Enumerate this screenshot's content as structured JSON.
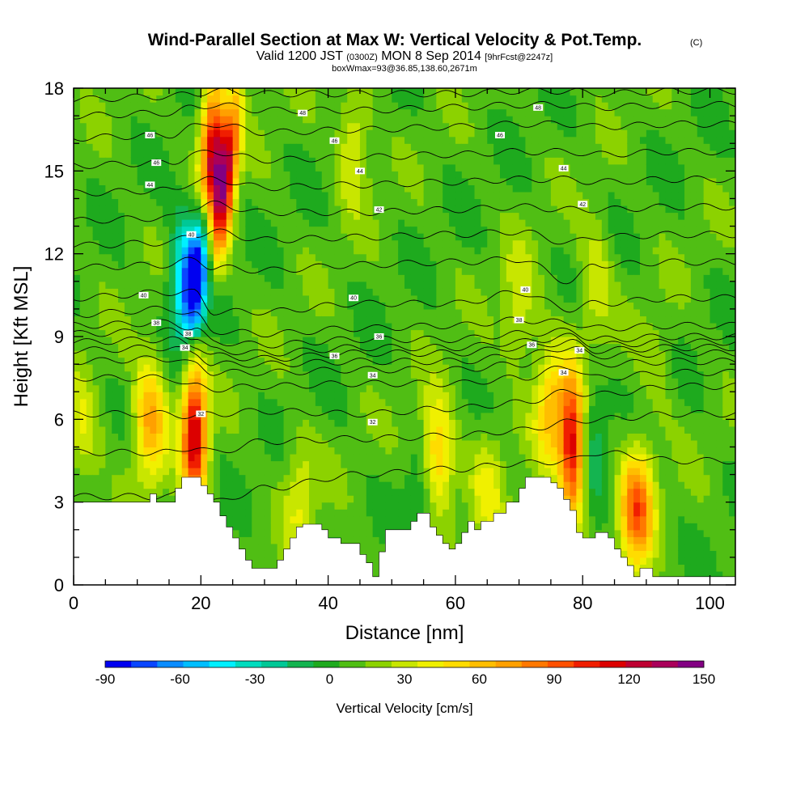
{
  "chart_data": {
    "type": "heatmap",
    "title": "Wind-Parallel Section at Max W: Vertical Velocity & Pot.Temp.",
    "title_tag": "(C)",
    "subtitle_parts": [
      "Valid 1200 JST",
      "(0300Z)",
      "MON 8 Sep 2014",
      "[9hrFcst@2247z]"
    ],
    "subtitle2": "boxWmax=93@36.85,138.60,2671m",
    "xlabel": "Distance [nm]",
    "ylabel": "Height [Kft MSL]",
    "xlim": [
      0,
      104
    ],
    "ylim": [
      0,
      18
    ],
    "xticks": [
      0,
      20,
      40,
      60,
      80,
      100
    ],
    "yticks": [
      0,
      3,
      6,
      9,
      12,
      15,
      18
    ],
    "grid": false,
    "colorbar": {
      "label": "Vertical Velocity [cm/s]",
      "ticks": [
        -90,
        -60,
        -30,
        0,
        30,
        60,
        90,
        120,
        150
      ],
      "range": [
        -90,
        150
      ],
      "colors": [
        "#0000f0",
        "#0a46ff",
        "#0a8cff",
        "#00beff",
        "#00f0ff",
        "#00dcbe",
        "#00c896",
        "#14b450",
        "#1eaa1e",
        "#50be14",
        "#8cd200",
        "#c8e600",
        "#f0f000",
        "#ffdc00",
        "#ffbe00",
        "#ffa000",
        "#ff7800",
        "#ff5000",
        "#f01e00",
        "#dc0000",
        "#be0032",
        "#aa005a",
        "#820082"
      ]
    },
    "wind_field": {
      "baseline_cm_s": 8,
      "features": [
        {
          "x_nm": 1.5,
          "z_kft": 5.5,
          "w_cm_s": 35
        },
        {
          "x_nm": 12,
          "z_kft": 6,
          "w_cm_s": 70
        },
        {
          "x_nm": 19,
          "z_kft": 5.5,
          "w_cm_s": 120
        },
        {
          "x_nm": 22,
          "z_kft": 15.5,
          "w_cm_s": 130
        },
        {
          "x_nm": 18,
          "z_kft": 11,
          "w_cm_s": -70
        },
        {
          "x_nm": 35.5,
          "z_kft": 3.2,
          "w_cm_s": 35
        },
        {
          "x_nm": 44,
          "z_kft": 16,
          "w_cm_s": 40
        },
        {
          "x_nm": 57,
          "z_kft": 4.5,
          "w_cm_s": 70
        },
        {
          "x_nm": 55,
          "z_kft": 3,
          "w_cm_s": -20
        },
        {
          "x_nm": 65,
          "z_kft": 3.5,
          "w_cm_s": 35
        },
        {
          "x_nm": 70,
          "z_kft": 10,
          "w_cm_s": 35
        },
        {
          "x_nm": 78.5,
          "z_kft": 5,
          "w_cm_s": 120
        },
        {
          "x_nm": 75,
          "z_kft": 6.5,
          "w_cm_s": 60
        },
        {
          "x_nm": 82,
          "z_kft": 11,
          "w_cm_s": 35
        },
        {
          "x_nm": 81,
          "z_kft": 5.5,
          "w_cm_s": -20
        },
        {
          "x_nm": 88.5,
          "z_kft": 2.8,
          "w_cm_s": 90
        },
        {
          "x_nm": 92,
          "z_kft": 8,
          "w_cm_s": 20
        }
      ]
    },
    "terrain_kft": [
      [
        0,
        3.0
      ],
      [
        12,
        3.0
      ],
      [
        12,
        3.3
      ],
      [
        13,
        3.3
      ],
      [
        13,
        3.0
      ],
      [
        16,
        3.0
      ],
      [
        16,
        3.5
      ],
      [
        17,
        3.5
      ],
      [
        17,
        3.9
      ],
      [
        20,
        3.9
      ],
      [
        20,
        3.6
      ],
      [
        21,
        3.6
      ],
      [
        21,
        3.3
      ],
      [
        22,
        3.3
      ],
      [
        22,
        3.0
      ],
      [
        23,
        3.0
      ],
      [
        23,
        2.5
      ],
      [
        24,
        2.5
      ],
      [
        24,
        2.1
      ],
      [
        25,
        2.1
      ],
      [
        25,
        1.7
      ],
      [
        26,
        1.7
      ],
      [
        26,
        1.3
      ],
      [
        27,
        1.3
      ],
      [
        27,
        0.9
      ],
      [
        28,
        0.9
      ],
      [
        28,
        0.6
      ],
      [
        32,
        0.6
      ],
      [
        32,
        0.9
      ],
      [
        33,
        0.9
      ],
      [
        33,
        1.3
      ],
      [
        34,
        1.3
      ],
      [
        34,
        1.7
      ],
      [
        35,
        1.7
      ],
      [
        35,
        2.1
      ],
      [
        36,
        2.1
      ],
      [
        36,
        2.2
      ],
      [
        39,
        2.2
      ],
      [
        39,
        2.0
      ],
      [
        40,
        2.0
      ],
      [
        40,
        1.7
      ],
      [
        42,
        1.7
      ],
      [
        42,
        1.5
      ],
      [
        45,
        1.5
      ],
      [
        45,
        1.1
      ],
      [
        46,
        1.1
      ],
      [
        46,
        0.8
      ],
      [
        47,
        0.8
      ],
      [
        47,
        0.3
      ],
      [
        48,
        0.3
      ],
      [
        48,
        1.2
      ],
      [
        49,
        1.2
      ],
      [
        49,
        2.0
      ],
      [
        53,
        2.0
      ],
      [
        53,
        2.3
      ],
      [
        54,
        2.3
      ],
      [
        54,
        2.6
      ],
      [
        56,
        2.6
      ],
      [
        56,
        2.1
      ],
      [
        57,
        2.1
      ],
      [
        57,
        1.8
      ],
      [
        58,
        1.8
      ],
      [
        58,
        1.5
      ],
      [
        59,
        1.5
      ],
      [
        59,
        1.3
      ],
      [
        60,
        1.3
      ],
      [
        60,
        1.5
      ],
      [
        61,
        1.5
      ],
      [
        61,
        1.9
      ],
      [
        62,
        1.9
      ],
      [
        62,
        2.3
      ],
      [
        63,
        2.3
      ],
      [
        63,
        2.0
      ],
      [
        64,
        2.0
      ],
      [
        64,
        2.3
      ],
      [
        66,
        2.3
      ],
      [
        66,
        2.6
      ],
      [
        68,
        2.6
      ],
      [
        68,
        3.0
      ],
      [
        70,
        3.0
      ],
      [
        70,
        3.5
      ],
      [
        71,
        3.5
      ],
      [
        71,
        3.9
      ],
      [
        75,
        3.9
      ],
      [
        75,
        3.7
      ],
      [
        76,
        3.7
      ],
      [
        76,
        3.5
      ],
      [
        77,
        3.5
      ],
      [
        77,
        3.1
      ],
      [
        78,
        3.1
      ],
      [
        78,
        2.7
      ],
      [
        79,
        2.7
      ],
      [
        79,
        1.9
      ],
      [
        80,
        1.9
      ],
      [
        80,
        1.7
      ],
      [
        82,
        1.7
      ],
      [
        82,
        1.9
      ],
      [
        84,
        1.9
      ],
      [
        84,
        1.7
      ],
      [
        85,
        1.7
      ],
      [
        85,
        1.3
      ],
      [
        86,
        1.3
      ],
      [
        86,
        1.0
      ],
      [
        87,
        1.0
      ],
      [
        87,
        0.7
      ],
      [
        88,
        0.7
      ],
      [
        88,
        0.3
      ],
      [
        89,
        0.3
      ],
      [
        89,
        0.6
      ],
      [
        91,
        0.6
      ],
      [
        91,
        0.3
      ],
      [
        104,
        0.3
      ]
    ],
    "isentropes": {
      "levels": [
        30,
        31,
        32,
        33,
        34,
        35,
        36,
        37,
        38,
        39,
        40,
        41,
        42,
        43,
        44,
        45,
        46,
        47,
        48,
        49
      ],
      "anchors_x_nm": [
        0,
        15,
        19,
        22,
        30,
        45,
        60,
        70,
        78,
        82,
        95,
        104
      ],
      "heights_kft": [
        [
          3.2,
          3.2,
          3.7,
          3.0,
          3.5,
          4.0,
          4.2,
          4.4,
          4.5,
          4.8,
          4.5,
          4.5
        ],
        [
          4.8,
          4.8,
          5.0,
          4.8,
          5.2,
          5.3,
          5.4,
          5.6,
          5.9,
          6.0,
          6.2,
          6.2
        ],
        [
          6.2,
          6.2,
          6.1,
          6.2,
          6.3,
          6.2,
          6.4,
          6.6,
          7.0,
          6.9,
          7.2,
          7.2
        ],
        [
          7.5,
          7.5,
          7.2,
          7.1,
          7.2,
          7.3,
          7.3,
          7.5,
          7.9,
          7.5,
          7.7,
          7.7
        ],
        [
          8.1,
          8.2,
          8.0,
          7.7,
          7.7,
          7.8,
          7.8,
          8.0,
          8.3,
          8.0,
          8.1,
          8.1
        ],
        [
          8.5,
          8.6,
          8.4,
          8.0,
          8.0,
          8.1,
          8.1,
          8.3,
          8.6,
          8.3,
          8.4,
          8.4
        ],
        [
          8.8,
          8.9,
          8.7,
          8.3,
          8.2,
          8.4,
          8.4,
          8.6,
          8.8,
          8.5,
          8.6,
          8.6
        ],
        [
          9.1,
          9.2,
          9.0,
          8.5,
          8.4,
          8.6,
          8.6,
          8.8,
          9.0,
          8.7,
          8.8,
          8.8
        ],
        [
          9.4,
          9.5,
          9.3,
          8.8,
          8.7,
          8.9,
          8.9,
          9.1,
          9.2,
          8.9,
          9.0,
          9.0
        ],
        [
          9.8,
          10.0,
          9.8,
          9.2,
          9.1,
          9.3,
          9.4,
          9.6,
          9.5,
          9.3,
          9.4,
          9.4
        ],
        [
          10.4,
          10.6,
          10.6,
          9.9,
          9.9,
          10.2,
          10.2,
          10.6,
          10.0,
          10.2,
          10.4,
          10.4
        ],
        [
          11.5,
          11.6,
          11.8,
          11.5,
          11.4,
          11.6,
          11.7,
          11.8,
          11.0,
          11.6,
          11.7,
          11.7
        ],
        [
          12.3,
          12.4,
          12.7,
          12.8,
          12.5,
          12.6,
          12.7,
          12.8,
          12.4,
          12.6,
          12.7,
          12.7
        ],
        [
          13.2,
          13.3,
          13.7,
          13.8,
          13.5,
          13.5,
          13.6,
          13.7,
          13.6,
          13.6,
          13.7,
          13.7
        ],
        [
          14.2,
          14.3,
          14.6,
          14.7,
          14.4,
          14.5,
          14.6,
          14.7,
          14.7,
          14.6,
          14.7,
          14.7
        ],
        [
          15.2,
          15.3,
          15.6,
          15.7,
          15.4,
          15.5,
          15.6,
          15.7,
          15.7,
          15.6,
          15.7,
          15.7
        ],
        [
          16.2,
          16.3,
          16.6,
          16.7,
          16.4,
          16.5,
          16.6,
          16.7,
          16.7,
          16.6,
          16.7,
          16.7
        ],
        [
          17.0,
          17.1,
          17.3,
          17.4,
          17.2,
          17.2,
          17.3,
          17.4,
          17.4,
          17.3,
          17.4,
          17.4
        ],
        [
          17.6,
          17.7,
          17.8,
          17.9,
          17.8,
          17.8,
          17.8,
          17.9,
          17.9,
          17.8,
          17.9,
          17.9
        ],
        [
          18.1,
          18.2,
          18.2,
          18.3,
          18.2,
          18.2,
          18.2,
          18.3,
          18.3,
          18.2,
          18.3,
          18.3
        ]
      ]
    },
    "contour_labels": [
      {
        "text": "48",
        "x_nm": 36,
        "z_kft": 17.1
      },
      {
        "text": "48",
        "x_nm": 73,
        "z_kft": 17.3
      },
      {
        "text": "46",
        "x_nm": 12,
        "z_kft": 16.3
      },
      {
        "text": "46",
        "x_nm": 41,
        "z_kft": 16.1
      },
      {
        "text": "46",
        "x_nm": 67,
        "z_kft": 16.3
      },
      {
        "text": "46",
        "x_nm": 13,
        "z_kft": 15.3
      },
      {
        "text": "44",
        "x_nm": 45,
        "z_kft": 15.0
      },
      {
        "text": "44",
        "x_nm": 77,
        "z_kft": 15.1
      },
      {
        "text": "44",
        "x_nm": 12,
        "z_kft": 14.5
      },
      {
        "text": "42",
        "x_nm": 80,
        "z_kft": 13.8
      },
      {
        "text": "42",
        "x_nm": 48,
        "z_kft": 13.6
      },
      {
        "text": "40",
        "x_nm": 18.5,
        "z_kft": 12.7
      },
      {
        "text": "40",
        "x_nm": 11,
        "z_kft": 10.5
      },
      {
        "text": "40",
        "x_nm": 44,
        "z_kft": 10.4
      },
      {
        "text": "40",
        "x_nm": 71,
        "z_kft": 10.7
      },
      {
        "text": "38",
        "x_nm": 13,
        "z_kft": 9.5
      },
      {
        "text": "38",
        "x_nm": 18,
        "z_kft": 9.1
      },
      {
        "text": "38",
        "x_nm": 70,
        "z_kft": 9.6
      },
      {
        "text": "36",
        "x_nm": 48,
        "z_kft": 9.0
      },
      {
        "text": "36",
        "x_nm": 72,
        "z_kft": 8.7
      },
      {
        "text": "36",
        "x_nm": 41,
        "z_kft": 8.3
      },
      {
        "text": "34",
        "x_nm": 17.5,
        "z_kft": 8.6
      },
      {
        "text": "34",
        "x_nm": 47,
        "z_kft": 7.6
      },
      {
        "text": "34",
        "x_nm": 79.5,
        "z_kft": 8.5
      },
      {
        "text": "34",
        "x_nm": 77,
        "z_kft": 7.7
      },
      {
        "text": "32",
        "x_nm": 20,
        "z_kft": 6.2
      },
      {
        "text": "32",
        "x_nm": 47,
        "z_kft": 5.9
      }
    ]
  }
}
